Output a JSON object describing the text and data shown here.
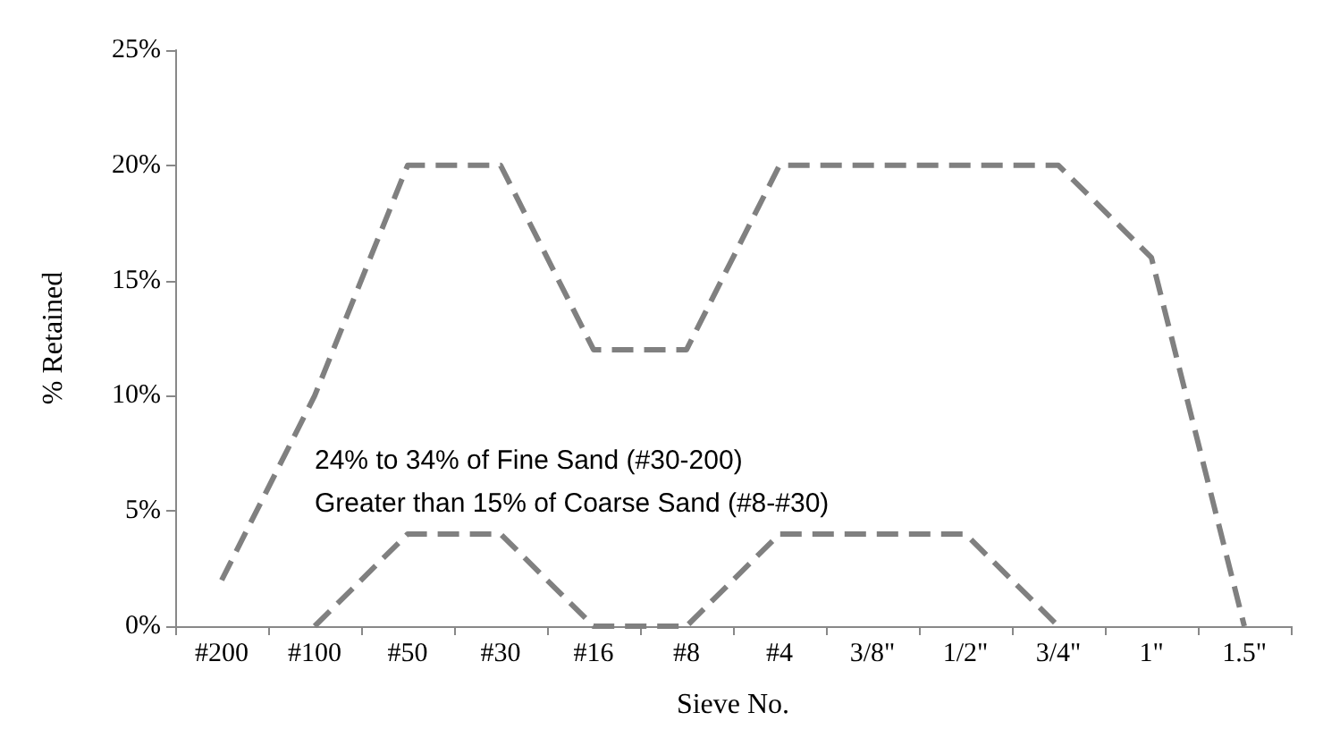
{
  "chart_data": {
    "type": "line",
    "xlabel": "Sieve No.",
    "ylabel": "% Retained",
    "categories": [
      "#200",
      "#100",
      "#50",
      "#30",
      "#16",
      "#8",
      "#4",
      "3/8\"",
      "1/2\"",
      "3/4\"",
      "1\"",
      "1.5\""
    ],
    "series": [
      {
        "color": "#808080",
        "values": [
          2,
          10,
          20,
          20,
          12,
          12,
          20,
          20,
          20,
          20,
          16,
          0
        ]
      },
      {
        "color": "#808080",
        "values": [
          null,
          0,
          4,
          4,
          0,
          0,
          4,
          4,
          4,
          0,
          null,
          null
        ]
      }
    ],
    "ylim": [
      0,
      25
    ],
    "yticks": [
      {
        "value": 0,
        "label": "0%"
      },
      {
        "value": 5,
        "label": "5%"
      },
      {
        "value": 10,
        "label": "10%"
      },
      {
        "value": 15,
        "label": "15%"
      },
      {
        "value": 20,
        "label": "20%"
      },
      {
        "value": 25,
        "label": "25%"
      }
    ],
    "line_style": "dashed",
    "marker": "none",
    "grid": false,
    "annotations": [
      "24% to 34% of Fine Sand (#30-200)",
      "Greater than 15% of Coarse Sand (#8-#30)"
    ]
  }
}
